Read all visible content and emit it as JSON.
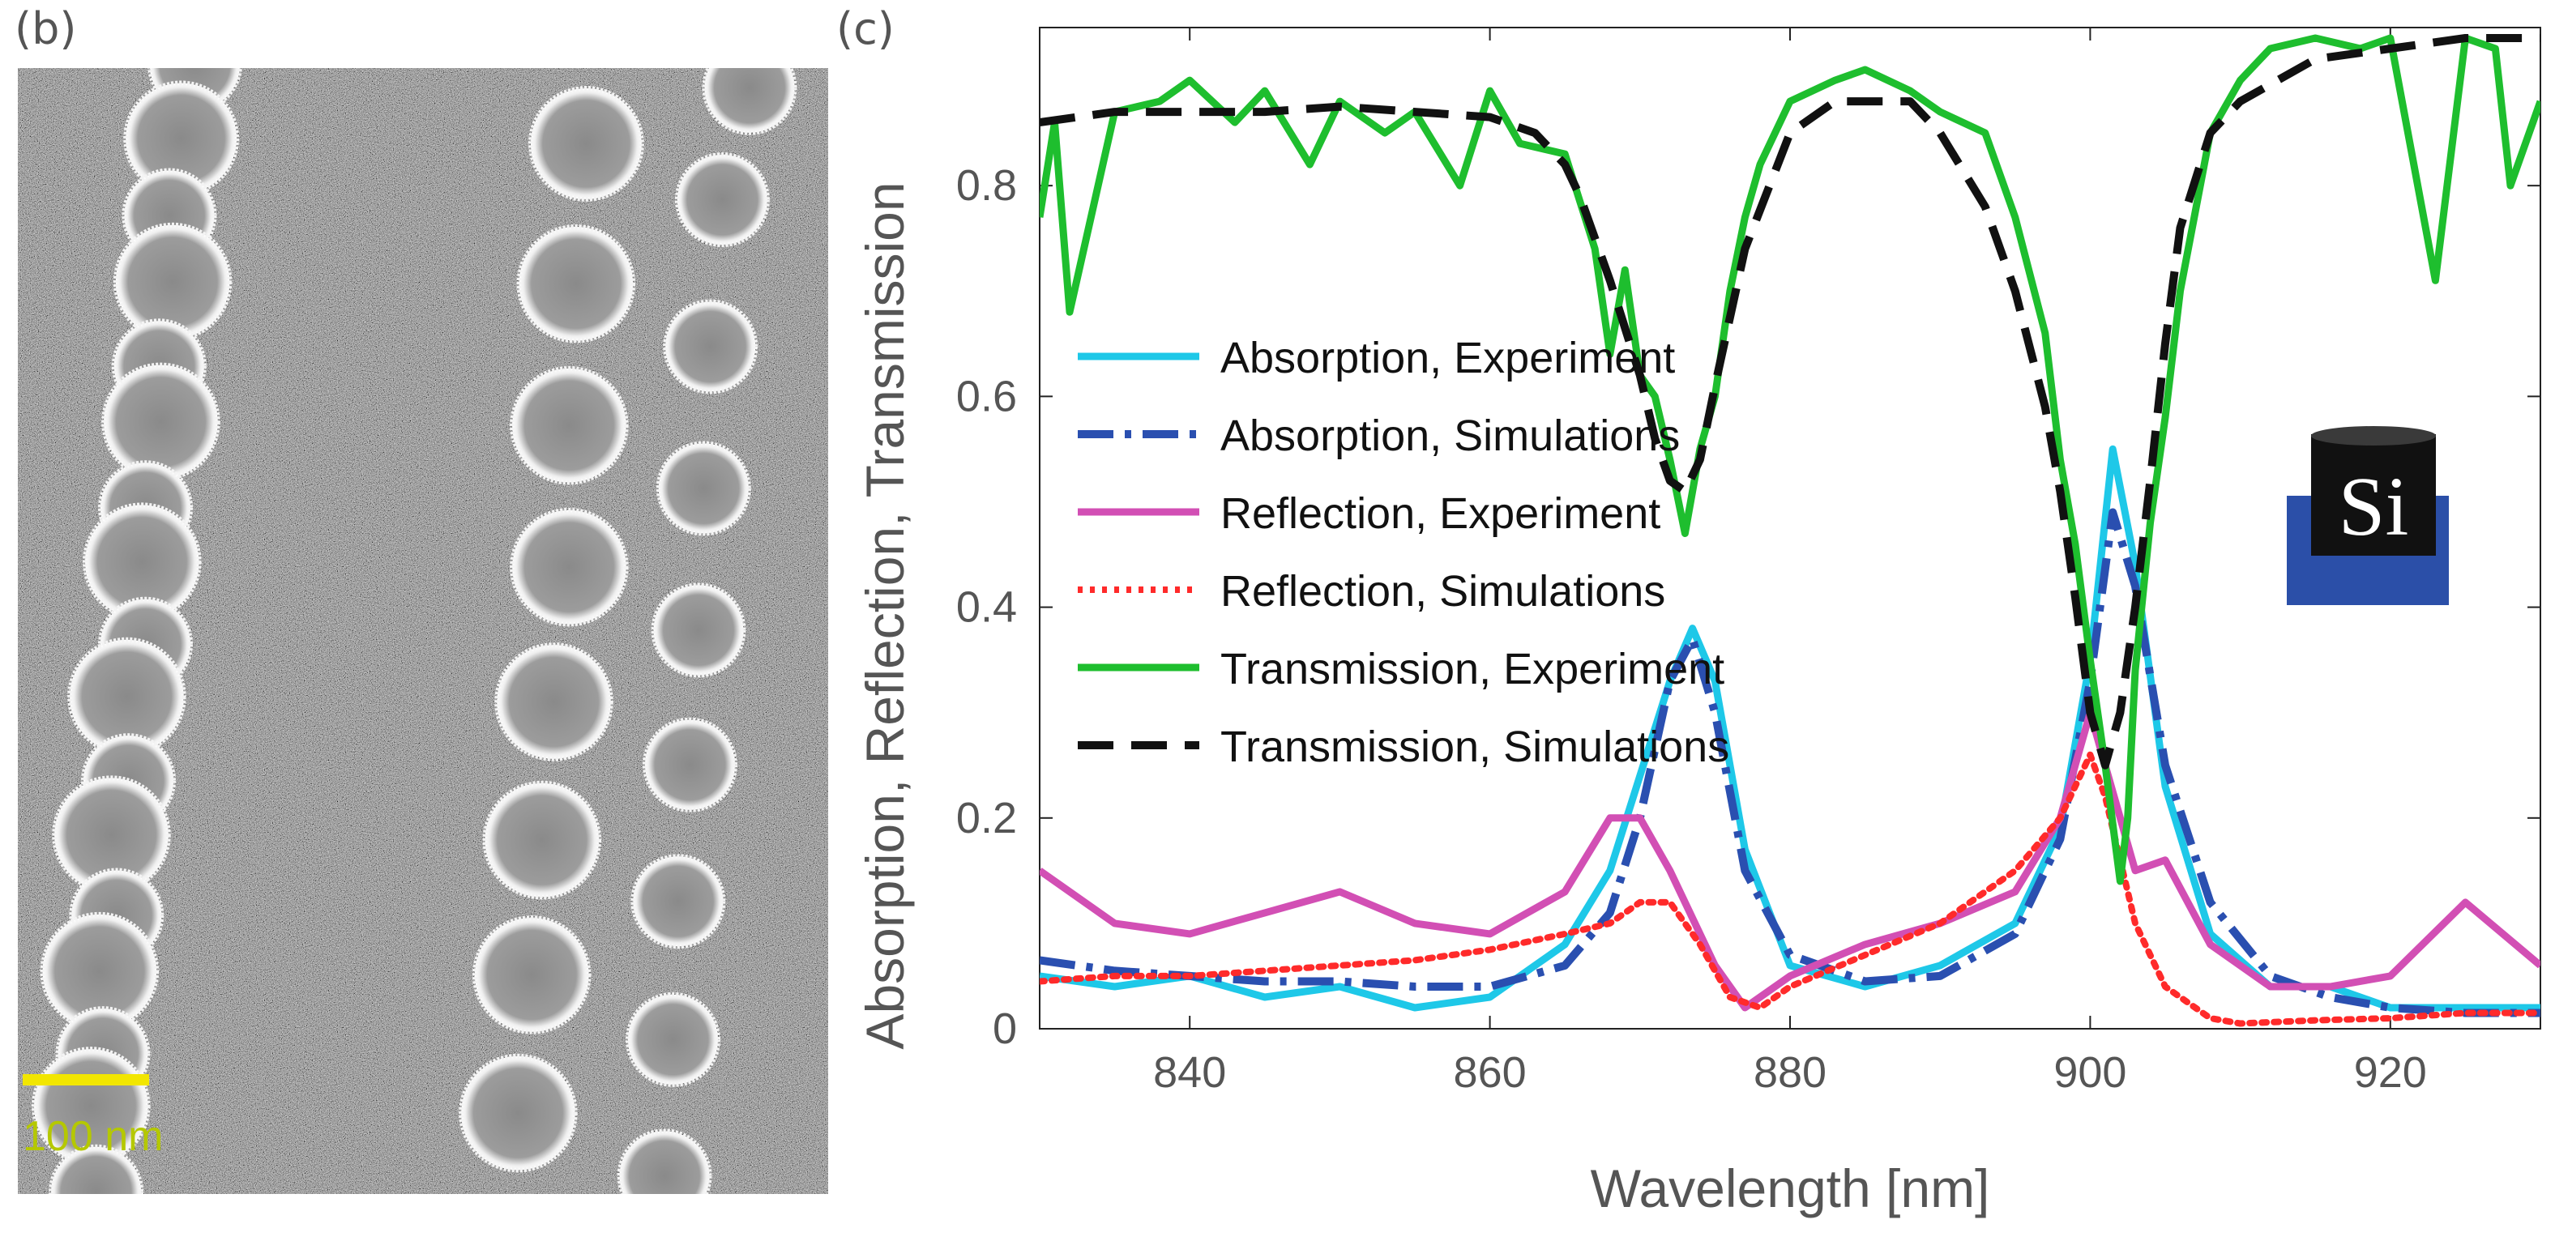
{
  "panels": {
    "left_label": "(b)",
    "right_label": "(c)"
  },
  "sem": {
    "scale_bar_label": "100 nm",
    "scale_bar_color": "#f2e600",
    "scale_text_color": "#b5c800"
  },
  "inset": {
    "label": "Si",
    "colors": {
      "base": "#2b4fa8",
      "cylinder": "#111111",
      "text": "#ffffff"
    }
  },
  "chart_data": {
    "type": "line",
    "xlabel": "Wavelength [nm]",
    "ylabel": "Absorption, Reflection, Transmission",
    "xlim": [
      830,
      930
    ],
    "ylim": [
      0,
      0.95
    ],
    "xticks": [
      840,
      860,
      880,
      900,
      920
    ],
    "yticks": [
      0,
      0.2,
      0.4,
      0.6,
      0.8
    ],
    "legend_position": "center-left",
    "series": [
      {
        "name": "Absorption, Experiment",
        "color": "#1ec8e8",
        "style": "solid",
        "x": [
          830,
          835,
          840,
          845,
          850,
          855,
          860,
          865,
          868,
          870,
          872,
          873.5,
          875,
          877,
          880,
          885,
          890,
          895,
          898,
          900,
          901.5,
          903,
          905,
          908,
          912,
          916,
          920,
          925,
          930
        ],
        "y": [
          0.05,
          0.04,
          0.05,
          0.03,
          0.04,
          0.02,
          0.03,
          0.08,
          0.15,
          0.24,
          0.33,
          0.38,
          0.33,
          0.17,
          0.06,
          0.04,
          0.06,
          0.1,
          0.19,
          0.35,
          0.55,
          0.44,
          0.23,
          0.09,
          0.04,
          0.04,
          0.02,
          0.02,
          0.02
        ]
      },
      {
        "name": "Absorption, Simulations",
        "color": "#2a4fb0",
        "style": "dashdot",
        "x": [
          830,
          835,
          840,
          845,
          850,
          855,
          860,
          865,
          868,
          870,
          872,
          873.5,
          875,
          877,
          880,
          885,
          890,
          895,
          898,
          900,
          901.5,
          903,
          905,
          908,
          912,
          916,
          920,
          925,
          930
        ],
        "y": [
          0.065,
          0.055,
          0.05,
          0.045,
          0.045,
          0.04,
          0.04,
          0.06,
          0.11,
          0.2,
          0.33,
          0.37,
          0.3,
          0.15,
          0.07,
          0.045,
          0.05,
          0.09,
          0.18,
          0.33,
          0.49,
          0.42,
          0.25,
          0.12,
          0.05,
          0.03,
          0.02,
          0.015,
          0.015
        ]
      },
      {
        "name": "Reflection, Experiment",
        "color": "#d24fb4",
        "style": "solid",
        "x": [
          830,
          835,
          840,
          845,
          850,
          855,
          860,
          865,
          868,
          870,
          872,
          875,
          877,
          880,
          885,
          890,
          895,
          898,
          900,
          901,
          903,
          905,
          908,
          912,
          916,
          920,
          925,
          930
        ],
        "y": [
          0.15,
          0.1,
          0.09,
          0.11,
          0.13,
          0.1,
          0.09,
          0.13,
          0.2,
          0.2,
          0.15,
          0.06,
          0.02,
          0.05,
          0.08,
          0.1,
          0.13,
          0.2,
          0.3,
          0.25,
          0.15,
          0.16,
          0.08,
          0.04,
          0.04,
          0.05,
          0.12,
          0.06
        ]
      },
      {
        "name": "Reflection, Simulations",
        "color": "#ff2a2a",
        "style": "dotted",
        "x": [
          830,
          835,
          840,
          845,
          850,
          855,
          860,
          865,
          868,
          870,
          872,
          874,
          876,
          878,
          880,
          885,
          890,
          895,
          898,
          900,
          901,
          903,
          905,
          908,
          910,
          915,
          920,
          925,
          930
        ],
        "y": [
          0.045,
          0.05,
          0.05,
          0.055,
          0.06,
          0.065,
          0.075,
          0.09,
          0.1,
          0.12,
          0.12,
          0.08,
          0.03,
          0.02,
          0.04,
          0.07,
          0.1,
          0.15,
          0.2,
          0.26,
          0.22,
          0.1,
          0.04,
          0.01,
          0.005,
          0.008,
          0.01,
          0.015,
          0.015
        ]
      },
      {
        "name": "Transmission, Experiment",
        "color": "#1ebe2e",
        "style": "solid",
        "x": [
          830,
          831,
          832,
          835,
          838,
          840,
          843,
          845,
          848,
          850,
          853,
          855,
          858,
          860,
          862,
          865,
          867,
          868,
          869,
          870,
          871,
          872,
          873,
          874,
          875,
          876,
          877,
          878,
          880,
          883,
          885,
          888,
          890,
          893,
          895,
          897,
          898,
          899,
          900,
          901,
          902,
          902.5,
          903,
          904,
          905,
          906,
          908,
          910,
          912,
          915,
          918,
          920,
          923,
          925,
          927,
          928,
          930
        ],
        "y": [
          0.77,
          0.86,
          0.68,
          0.87,
          0.88,
          0.9,
          0.86,
          0.89,
          0.82,
          0.88,
          0.85,
          0.87,
          0.8,
          0.89,
          0.84,
          0.83,
          0.74,
          0.64,
          0.72,
          0.62,
          0.6,
          0.54,
          0.47,
          0.55,
          0.6,
          0.7,
          0.77,
          0.82,
          0.88,
          0.9,
          0.91,
          0.89,
          0.87,
          0.85,
          0.77,
          0.66,
          0.54,
          0.46,
          0.35,
          0.25,
          0.14,
          0.2,
          0.34,
          0.48,
          0.58,
          0.7,
          0.85,
          0.9,
          0.93,
          0.94,
          0.93,
          0.94,
          0.71,
          0.94,
          0.93,
          0.8,
          0.88
        ]
      },
      {
        "name": "Transmission, Simulations",
        "color": "#111111",
        "style": "dashed",
        "x": [
          830,
          835,
          840,
          845,
          850,
          855,
          860,
          863,
          865,
          866,
          868,
          870,
          871,
          872,
          873,
          874,
          875,
          877,
          880,
          883,
          885,
          888,
          890,
          893,
          895,
          897,
          898,
          899,
          900,
          901,
          902,
          903,
          904,
          905,
          906,
          908,
          910,
          915,
          920,
          925,
          930
        ],
        "y": [
          0.86,
          0.87,
          0.87,
          0.87,
          0.875,
          0.87,
          0.865,
          0.85,
          0.82,
          0.79,
          0.71,
          0.62,
          0.56,
          0.52,
          0.51,
          0.54,
          0.61,
          0.74,
          0.85,
          0.88,
          0.88,
          0.88,
          0.85,
          0.78,
          0.7,
          0.59,
          0.51,
          0.41,
          0.3,
          0.25,
          0.3,
          0.4,
          0.52,
          0.65,
          0.76,
          0.85,
          0.88,
          0.92,
          0.93,
          0.94,
          0.94
        ]
      }
    ]
  }
}
